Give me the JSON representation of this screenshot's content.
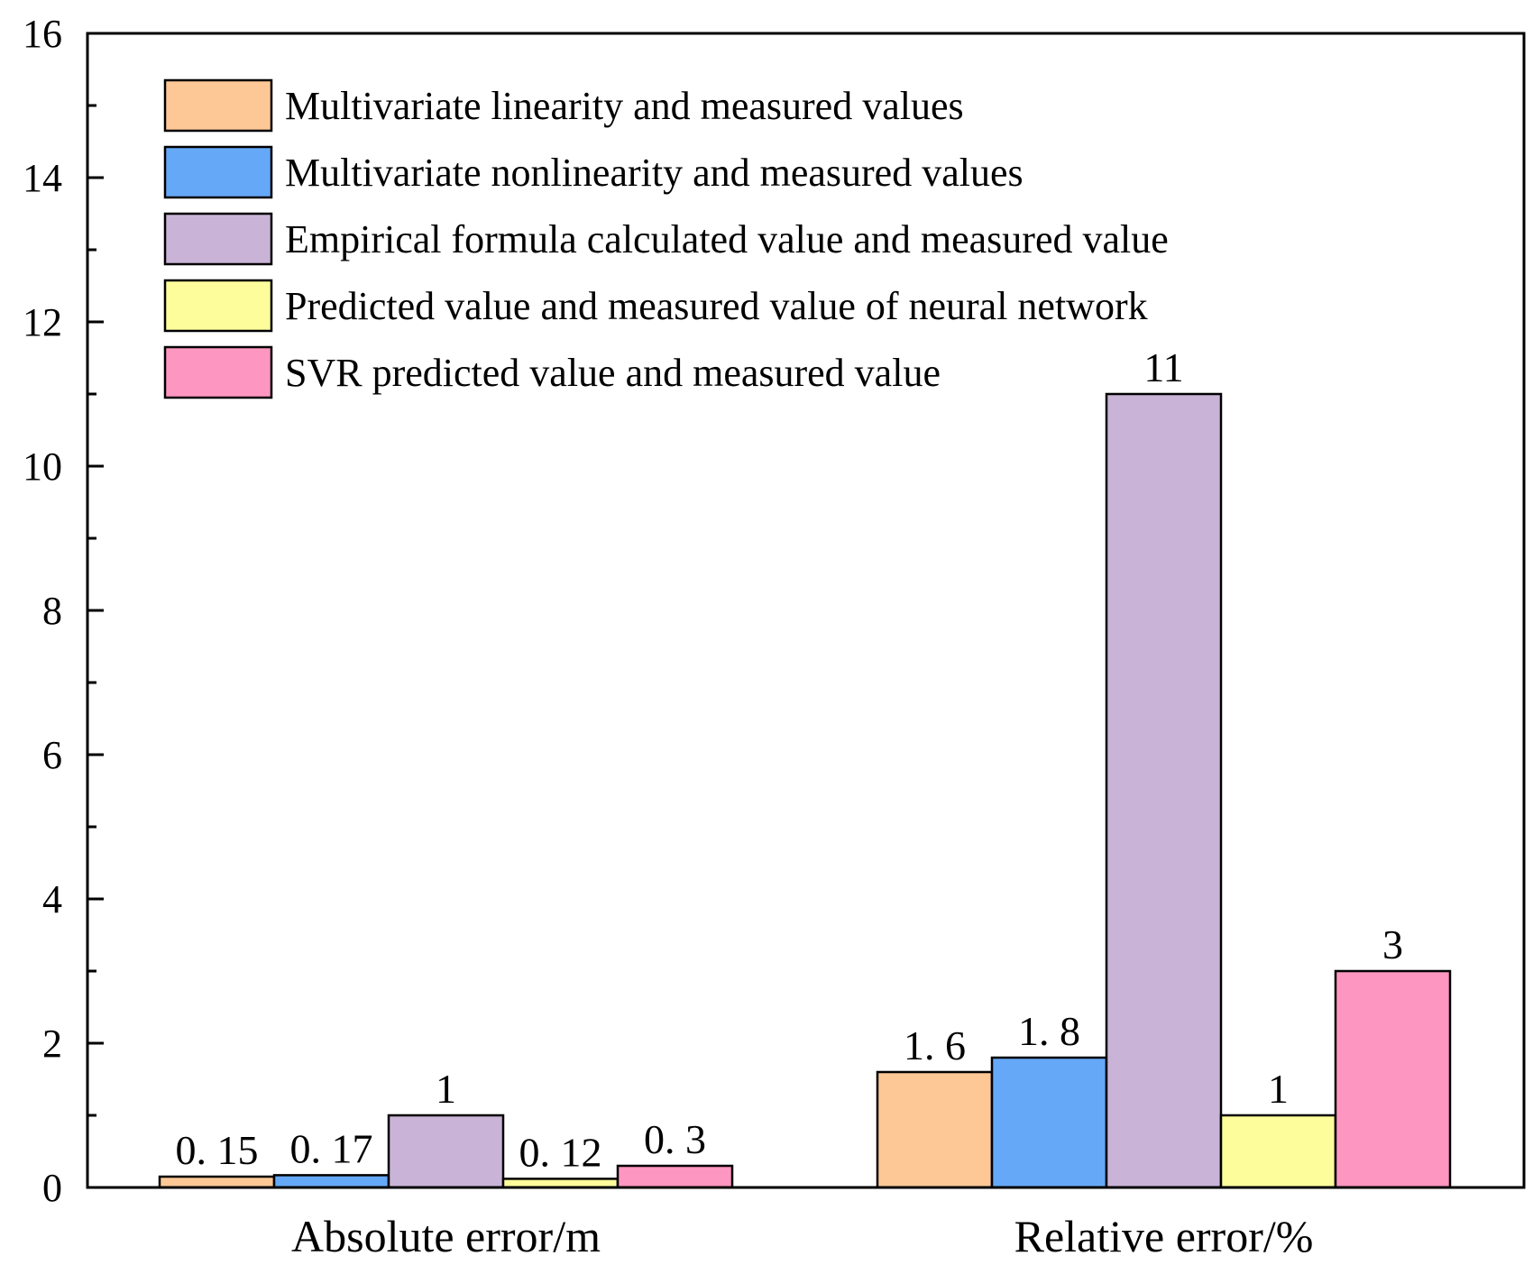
{
  "chart_data": {
    "type": "bar",
    "categories": [
      "Absolute error/m",
      "Relative error/%"
    ],
    "series": [
      {
        "name": "Multivariate linearity and measured values",
        "color": "#FDC896",
        "values": [
          0.15,
          1.6
        ],
        "labels": [
          "0. 15",
          "1. 6"
        ]
      },
      {
        "name": "Multivariate nonlinearity and measured values",
        "color": "#66A8F8",
        "values": [
          0.17,
          1.8
        ],
        "labels": [
          "0. 17",
          "1. 8"
        ]
      },
      {
        "name": "Empirical formula calculated value and measured value",
        "color": "#C9B3D6",
        "values": [
          1,
          11
        ],
        "labels": [
          "1",
          "11"
        ]
      },
      {
        "name": "Predicted value and measured value of neural network",
        "color": "#FDFD9C",
        "values": [
          0.12,
          1
        ],
        "labels": [
          "0. 12",
          "1"
        ]
      },
      {
        "name": "SVR predicted value and measured value",
        "color": "#FD96C0",
        "values": [
          0.3,
          3
        ],
        "labels": [
          "0. 3",
          "3"
        ]
      }
    ],
    "ylim": [
      0,
      16
    ],
    "yticks": [
      0,
      2,
      4,
      6,
      8,
      10,
      12,
      14,
      16
    ],
    "ytick_labels": [
      "0",
      "2",
      "4",
      "6",
      "8",
      "10",
      "12",
      "14",
      "16"
    ],
    "legend": "top-left",
    "grid": false
  }
}
